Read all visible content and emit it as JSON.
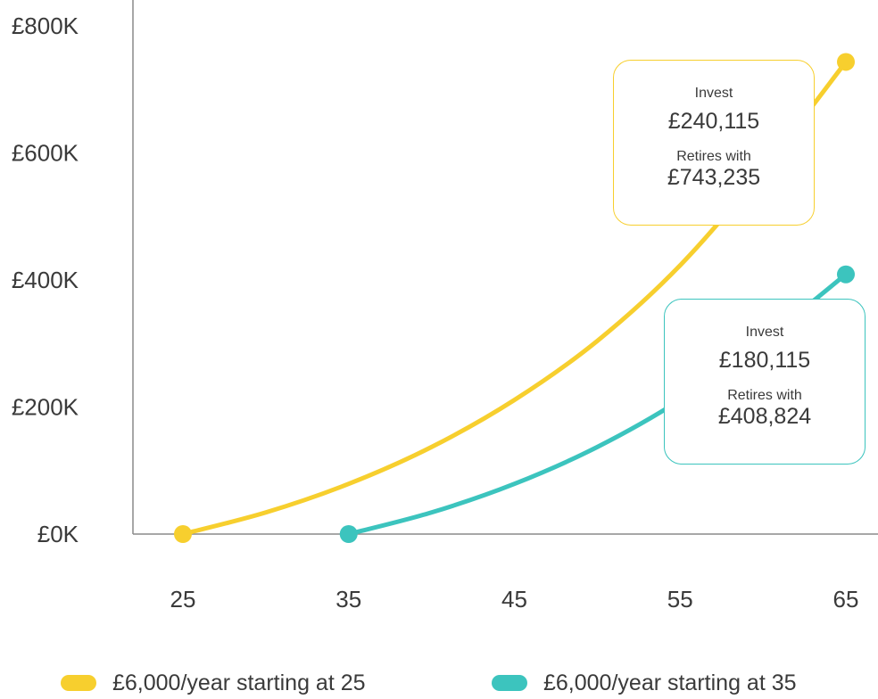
{
  "chart_data": {
    "type": "line",
    "x": [
      25,
      35,
      45,
      55,
      65
    ],
    "xticks": [
      "25",
      "35",
      "45",
      "55",
      "65"
    ],
    "yticks": [
      "£0K",
      "£200K",
      "£400K",
      "£600K",
      "£800K"
    ],
    "ytick_values": [
      0,
      200000,
      400000,
      600000,
      800000
    ],
    "xlim": [
      25,
      65
    ],
    "ylim": [
      0,
      800000
    ],
    "grid": false,
    "legend_position": "bottom",
    "series": [
      {
        "name": "£6,000/year starting at 25",
        "color": "#f7cf2e",
        "points": [
          [
            25,
            0
          ],
          [
            30,
            34000
          ],
          [
            35,
            79000
          ],
          [
            40,
            137000
          ],
          [
            45,
            211000
          ],
          [
            50,
            304000
          ],
          [
            55,
            423000
          ],
          [
            60,
            574000
          ],
          [
            65,
            743235
          ]
        ]
      },
      {
        "name": "£6,000/year starting at 35",
        "color": "#3cc4be",
        "points": [
          [
            35,
            0
          ],
          [
            40,
            34000
          ],
          [
            45,
            79000
          ],
          [
            50,
            137000
          ],
          [
            55,
            211000
          ],
          [
            60,
            304000
          ],
          [
            65,
            408824
          ]
        ]
      }
    ],
    "annotations": [
      {
        "series": 0,
        "invest_label": "Invest",
        "invest_value": "£240,115",
        "retire_label": "Retires with",
        "retire_value": "£743,235"
      },
      {
        "series": 1,
        "invest_label": "Invest",
        "invest_value": "£180,115",
        "retire_label": "Retires with",
        "retire_value": "£408,824"
      }
    ]
  }
}
